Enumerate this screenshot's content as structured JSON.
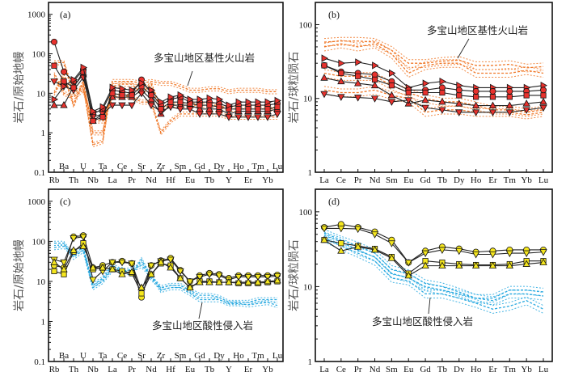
{
  "chart_data": [
    {
      "id": "a",
      "type": "line",
      "panel_label": "(a)",
      "title": "",
      "xlabel": "",
      "ylabel": "岩石/原始地幔",
      "yscale": "log",
      "ylim": [
        0.1,
        2000
      ],
      "yticks": [
        0.1,
        1,
        10,
        100,
        1000
      ],
      "ytick_labels": [
        "0.1",
        "1",
        "10",
        "100",
        "1000"
      ],
      "categories": [
        "Rb",
        "Ba",
        "Th",
        "U",
        "Nb",
        "Ta",
        "La",
        "Ce",
        "Pr",
        "Sr",
        "Nd",
        "Zr",
        "Hf",
        "Sm",
        "Eu",
        "Gd",
        "Tb",
        "Dy",
        "Y",
        "Ho",
        "Er",
        "Tm",
        "Yb",
        "Lu"
      ],
      "annotation": "多宝山地区基性火山岩",
      "sample_color": "#e8322d",
      "field_color": "#f07828",
      "series": [
        {
          "name": "sample-1",
          "marker": "circle",
          "values": [
            200,
            35,
            20,
            40,
            3,
            4,
            12,
            11,
            10,
            22,
            10,
            5,
            7,
            8,
            6,
            6,
            6,
            5.5,
            4.5,
            5,
            5,
            5,
            5,
            5.5
          ]
        },
        {
          "name": "sample-2",
          "marker": "triangle-up",
          "values": [
            5,
            5,
            15,
            30,
            2,
            3,
            8,
            8,
            8,
            12,
            7,
            3,
            5,
            5,
            5,
            4,
            4,
            4,
            3,
            3.5,
            3.5,
            3.5,
            3.5,
            4
          ]
        },
        {
          "name": "sample-3",
          "marker": "triangle-down",
          "values": [
            20,
            15,
            12,
            25,
            2.5,
            3,
            5,
            5,
            5,
            10,
            5,
            3.5,
            4.5,
            4,
            4,
            3,
            3,
            3,
            2.5,
            2.5,
            2.5,
            2.5,
            2.5,
            3
          ]
        },
        {
          "name": "sample-4",
          "marker": "square",
          "values": [
            50,
            20,
            14,
            35,
            2,
            2.5,
            10,
            9,
            9,
            15,
            9,
            4,
            6,
            6,
            5.5,
            5,
            5,
            4.5,
            4,
            4,
            4,
            4,
            4,
            4.5
          ]
        },
        {
          "name": "sample-5",
          "marker": "triangle-right",
          "values": [
            7,
            15,
            22,
            45,
            3.5,
            4.5,
            14,
            13,
            12,
            18,
            12,
            6,
            8,
            9,
            7,
            7,
            7.5,
            7,
            5,
            6,
            6,
            6,
            6,
            6.5
          ]
        }
      ],
      "field": [
        {
          "name": "field-1",
          "values": [
            60,
            60,
            10,
            15,
            0.5,
            0.6,
            20,
            20,
            20,
            18,
            20,
            18,
            18,
            15,
            12,
            12,
            13,
            13,
            11,
            12,
            12,
            12,
            11,
            11
          ]
        },
        {
          "name": "field-2",
          "values": [
            10,
            30,
            5,
            20,
            1,
            1,
            15,
            17,
            17,
            10,
            17,
            4,
            5,
            5,
            5,
            5,
            5,
            5,
            4,
            4,
            4,
            4,
            4,
            4
          ]
        },
        {
          "name": "field-3",
          "values": [
            30,
            10,
            8,
            12,
            2,
            2,
            8,
            9,
            8,
            6,
            6,
            1,
            2,
            3,
            3,
            3,
            3,
            3,
            2.5,
            2.5,
            2.5,
            2.5,
            2.5,
            2.5
          ]
        }
      ]
    },
    {
      "id": "b",
      "type": "line",
      "panel_label": "(b)",
      "title": "",
      "xlabel": "",
      "ylabel": "岩石/球粒陨石",
      "yscale": "log",
      "ylim": [
        1,
        200
      ],
      "yticks": [
        1,
        10,
        100
      ],
      "ytick_labels": [
        "1",
        "10",
        "100"
      ],
      "categories": [
        "La",
        "Ce",
        "Pr",
        "Nd",
        "Sm",
        "Eu",
        "Gd",
        "Tb",
        "Dy",
        "Ho",
        "Er",
        "Tm",
        "Yb",
        "Lu"
      ],
      "annotation": "多宝山地区基性火山岩",
      "sample_color": "#e8322d",
      "field_color": "#f07828",
      "series": [
        {
          "name": "sample-1",
          "marker": "triangle-right",
          "values": [
            35,
            30,
            31,
            28,
            22,
            14,
            16,
            17,
            15,
            14,
            14,
            14,
            14,
            15
          ]
        },
        {
          "name": "sample-2",
          "marker": "circle",
          "values": [
            28,
            23,
            22,
            21,
            17,
            13,
            13,
            14,
            13,
            12.5,
            12.5,
            12.5,
            12.5,
            13
          ]
        },
        {
          "name": "sample-3",
          "marker": "square",
          "values": [
            28,
            22,
            20,
            18,
            15,
            12,
            12,
            12,
            11,
            10.5,
            10.5,
            10.5,
            11,
            11
          ]
        },
        {
          "name": "sample-4",
          "marker": "triangle-up",
          "values": [
            19,
            17,
            16,
            15,
            11,
            8.5,
            9.5,
            9,
            8.5,
            8,
            8,
            8,
            8.5,
            9
          ]
        },
        {
          "name": "sample-5",
          "marker": "triangle-down",
          "values": [
            11.5,
            10.5,
            10.3,
            10,
            9,
            9.5,
            7.5,
            7,
            6.5,
            6.5,
            6.5,
            6.5,
            7,
            7.5
          ]
        }
      ],
      "field": [
        {
          "name": "field-1",
          "values": [
            58,
            60,
            60,
            58,
            45,
            30,
            30,
            32,
            33,
            28,
            28,
            29,
            26,
            27
          ]
        },
        {
          "name": "field-2",
          "values": [
            50,
            55,
            50,
            55,
            40,
            22,
            28,
            30,
            30,
            22,
            22,
            22,
            24,
            22
          ]
        },
        {
          "name": "field-3",
          "values": [
            22,
            20,
            20,
            20,
            15,
            12,
            10,
            9,
            9,
            8,
            7,
            7,
            6.5,
            7
          ]
        },
        {
          "name": "field-4",
          "values": [
            13,
            12,
            12,
            13,
            11,
            10,
            6.5,
            7,
            7,
            6.5,
            6.5,
            6.5,
            6,
            6.5
          ]
        }
      ]
    },
    {
      "id": "c",
      "type": "line",
      "panel_label": "(c)",
      "title": "",
      "xlabel": "",
      "ylabel": "岩石/原始地幔",
      "yscale": "log",
      "ylim": [
        0.1,
        2000
      ],
      "yticks": [
        0.1,
        1,
        10,
        100,
        1000
      ],
      "ytick_labels": [
        "0.1",
        "1",
        "10",
        "100",
        "1000"
      ],
      "categories": [
        "Rb",
        "Ba",
        "Th",
        "U",
        "Nb",
        "Ta",
        "La",
        "Ce",
        "Pr",
        "Sr",
        "Nd",
        "Zr",
        "Hf",
        "Sm",
        "Eu",
        "Gd",
        "Tb",
        "Dy",
        "Y",
        "Ho",
        "Er",
        "Tm",
        "Yb",
        "Lu"
      ],
      "annotation": "多宝山地区酸性侵入岩",
      "sample_color": "#f5e61e",
      "field_color": "#29a9e0",
      "series": [
        {
          "name": "sample-1",
          "marker": "circle",
          "values": [
            25,
            22,
            130,
            140,
            22,
            25,
            30,
            32,
            28,
            4,
            25,
            33,
            38,
            19,
            10,
            14,
            16,
            15,
            12,
            14,
            14,
            14,
            14,
            14.5
          ]
        },
        {
          "name": "sample-2",
          "marker": "triangle-down",
          "values": [
            35,
            30,
            120,
            130,
            11,
            18,
            30,
            30,
            28,
            6,
            25,
            32,
            35,
            18,
            10,
            13,
            15,
            14,
            11,
            13,
            13,
            13,
            13,
            13.5
          ]
        },
        {
          "name": "sample-3",
          "marker": "square",
          "values": [
            18,
            15,
            55,
            90,
            20,
            22,
            20,
            18,
            16,
            5,
            15,
            28,
            25,
            12,
            7,
            10,
            10,
            9.5,
            9.5,
            9,
            9,
            9,
            9.5,
            10
          ]
        },
        {
          "name": "sample-4",
          "marker": "triangle-up",
          "values": [
            30,
            20,
            60,
            75,
            22,
            22,
            20,
            15,
            17,
            7,
            15,
            30,
            22,
            12,
            7,
            9.5,
            9.5,
            9.5,
            9.5,
            9.5,
            9.5,
            9.5,
            10,
            10.5
          ]
        }
      ],
      "field": [
        {
          "name": "field-1",
          "values": [
            90,
            90,
            40,
            60,
            7,
            10,
            20,
            20,
            15,
            35,
            12,
            7,
            8,
            8,
            6,
            4.5,
            4.5,
            4,
            3,
            3,
            3,
            3.5,
            3.5,
            3.5
          ]
        },
        {
          "name": "field-2",
          "values": [
            70,
            75,
            50,
            70,
            8,
            12,
            25,
            18,
            20,
            25,
            14,
            6,
            7,
            7,
            5,
            3.5,
            3.5,
            3.5,
            2.8,
            2.8,
            2.6,
            2.8,
            3,
            2.5
          ]
        }
      ]
    },
    {
      "id": "d",
      "type": "line",
      "panel_label": "(d)",
      "title": "",
      "xlabel": "",
      "ylabel": "岩石/球粒陨石",
      "yscale": "log",
      "ylim": [
        1,
        200
      ],
      "yticks": [
        1,
        10,
        100
      ],
      "ytick_labels": [
        "1",
        "10",
        "100"
      ],
      "categories": [
        "La",
        "Ce",
        "Pr",
        "Nd",
        "Sm",
        "Eu",
        "Gd",
        "Tb",
        "Dy",
        "Ho",
        "Er",
        "Tm",
        "Yb",
        "Lu"
      ],
      "annotation": "多宝山地区酸性侵入岩",
      "sample_color": "#f5e61e",
      "field_color": "#29a9e0",
      "series": [
        {
          "name": "sample-1",
          "marker": "circle",
          "values": [
            62,
            68,
            62,
            54,
            42,
            21,
            30,
            34,
            32,
            29,
            30,
            31,
            31,
            31
          ]
        },
        {
          "name": "sample-2",
          "marker": "triangle-down",
          "values": [
            60,
            60,
            59,
            50,
            38,
            21,
            28,
            31,
            30,
            27,
            27,
            28,
            28,
            29
          ]
        },
        {
          "name": "sample-3",
          "marker": "square",
          "values": [
            42,
            38,
            35,
            32,
            25,
            15,
            22,
            21,
            20,
            19.5,
            19.5,
            20,
            22,
            22
          ]
        },
        {
          "name": "sample-4",
          "marker": "triangle-up",
          "values": [
            42,
            30,
            34,
            31,
            24,
            14,
            19,
            19,
            19,
            19,
            19,
            19,
            20,
            21
          ]
        }
      ],
      "field": [
        {
          "name": "field-1",
          "values": [
            52,
            42,
            35,
            28,
            17,
            15,
            11,
            10,
            8.5,
            7,
            7,
            9,
            9,
            8.5
          ]
        },
        {
          "name": "field-2",
          "values": [
            45,
            35,
            28,
            22,
            13,
            12,
            8,
            8,
            7,
            6,
            5,
            5.5,
            6.5,
            5
          ]
        },
        {
          "name": "field-3",
          "values": [
            48,
            40,
            30,
            25,
            15,
            13,
            10,
            9,
            8,
            7,
            6.5,
            8,
            8,
            7.5
          ]
        }
      ]
    }
  ]
}
